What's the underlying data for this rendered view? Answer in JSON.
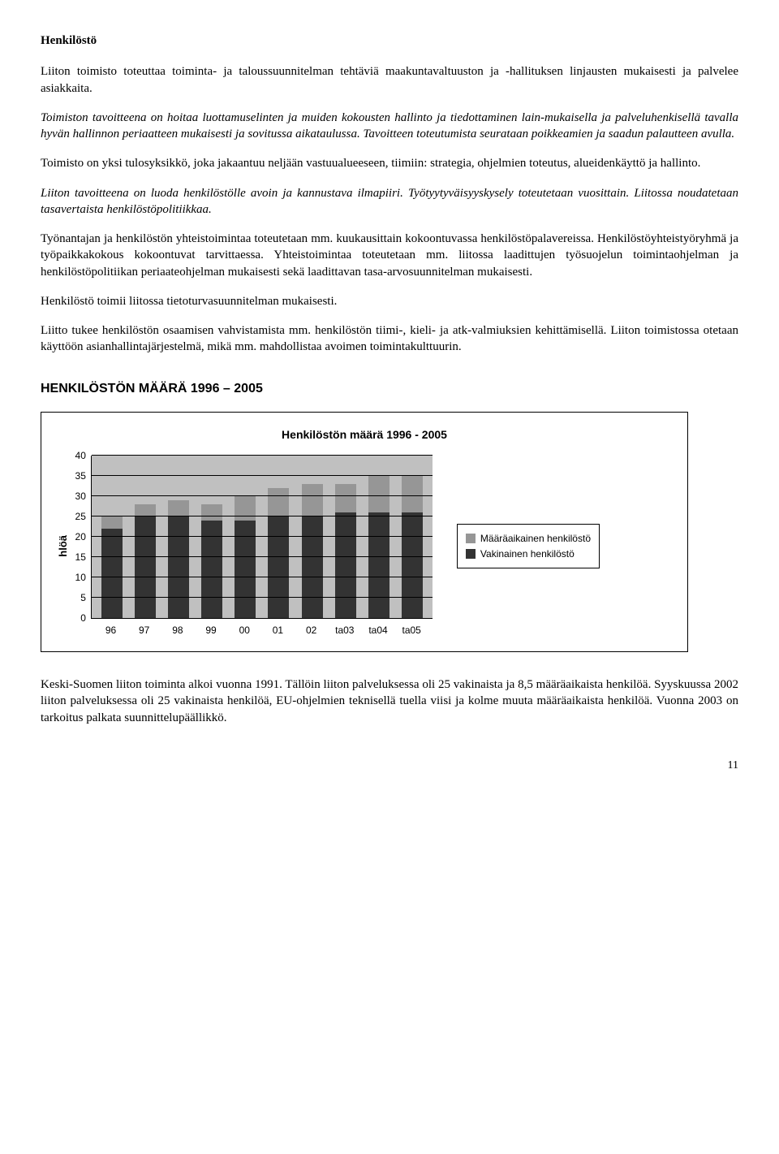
{
  "h_henkilosto": "Henkilöstö",
  "p1": "Liiton toimisto toteuttaa toiminta- ja taloussuunnitelman tehtäviä maakuntavaltuuston ja -hallituksen linjausten mukaisesti ja palvelee asiakkaita.",
  "p2": "Toimiston tavoitteena on hoitaa luottamuselinten ja muiden kokousten hallinto ja tiedottaminen lain-mukaisella ja palveluhenkisellä tavalla hyvän hallinnon periaatteen mukaisesti ja sovitussa aikataulussa. Tavoitteen toteutumista seurataan poikkeamien ja saadun palautteen avulla.",
  "p3": "Toimisto on yksi tulosyksikkö, joka jakaantuu neljään vastuualueeseen, tiimiin: strategia, ohjelmien toteutus, alueidenkäyttö ja hallinto.",
  "p4": "Liiton tavoitteena on luoda henkilöstölle avoin ja kannustava ilmapiiri. Työtyytyväisyyskysely toteutetaan vuosittain. Liitossa noudatetaan tasavertaista henkilöstöpolitiikkaa.",
  "p5": "Työnantajan ja henkilöstön yhteistoimintaa toteutetaan mm. kuukausittain kokoontuvassa henkilöstöpalavereissa. Henkilöstöyhteistyöryhmä ja työpaikkakokous kokoontuvat tarvittaessa. Yhteistoimintaa toteutetaan mm. liitossa laadittujen työsuojelun toimintaohjelman ja henkilöstöpolitiikan periaateohjelman mukaisesti sekä laadittavan tasa-arvosuunnitelman mukaisesti.",
  "p6": "Henkilöstö toimii liitossa tietoturvasuunnitelman mukaisesti.",
  "p7": "Liitto tukee henkilöstön osaamisen vahvistamista mm. henkilöstön tiimi-, kieli- ja atk-valmiuksien kehittämisellä. Liiton toimistossa otetaan käyttöön asianhallintajärjestelmä, mikä mm. mahdollistaa avoimen toimintakulttuurin.",
  "h_chart": "HENKILÖSTÖN MÄÄRÄ 1996 – 2005",
  "chart": {
    "title": "Henkilöstön määrä 1996 - 2005",
    "y_label": "hlöä",
    "y_max": 40,
    "y_step": 5,
    "y_ticks": [
      "40",
      "35",
      "30",
      "25",
      "20",
      "15",
      "10",
      "5",
      "0"
    ],
    "categories": [
      "96",
      "97",
      "98",
      "99",
      "00",
      "01",
      "02",
      "ta03",
      "ta04",
      "ta05"
    ],
    "permanent": [
      22,
      25,
      25,
      24,
      24,
      25,
      25,
      26,
      26,
      26
    ],
    "temporary": [
      3,
      3,
      4,
      4,
      6,
      7,
      8,
      7,
      9,
      9
    ],
    "legend_temp": "Määräaikainen henkilöstö",
    "legend_perm": "Vakinainen henkilöstö",
    "color_temp": "#969696",
    "color_perm": "#333333",
    "plot_bg": "#c0c0c0"
  },
  "p_footer": "Keski-Suomen liiton toiminta alkoi vuonna 1991. Tällöin liiton palveluksessa oli 25 vakinaista ja 8,5 määräaikaista henkilöä. Syyskuussa 2002 liiton palveluksessa oli 25 vakinaista henkilöä, EU-ohjelmien teknisellä tuella viisi ja kolme muuta määräaikaista henkilöä. Vuonna 2003 on tarkoitus palkata suunnittelupäällikkö.",
  "page_num": "11"
}
